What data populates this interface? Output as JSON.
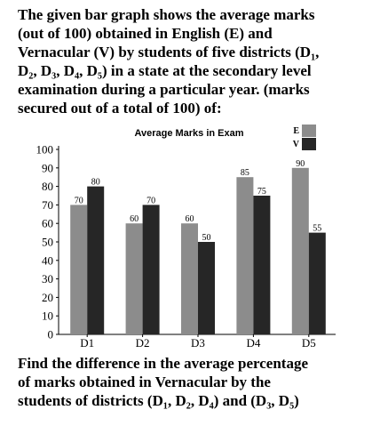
{
  "question": {
    "top": [
      "The given bar graph shows the average marks",
      "(out of 100) obtained in English (E) and",
      "Vernacular (V) by students of five districts (D₁,",
      "D₂, D₃, D₄, D₅) in a state at the secondary level",
      "examination during a particular year. (marks",
      "secured out of a total of 100) of:"
    ],
    "bottom": [
      "Find the difference in the average percentage",
      "of marks obtained in Vernacular by the",
      "students of districts (D₁, D₂, D₄) and (D₃, D₅)"
    ]
  },
  "chart_data": {
    "type": "bar",
    "title": "Average Marks in Exam",
    "categories": [
      "D1",
      "D2",
      "D3",
      "D4",
      "D5"
    ],
    "series": [
      {
        "name": "E",
        "values": [
          70,
          60,
          60,
          85,
          90
        ],
        "color": "#8c8c8c"
      },
      {
        "name": "V",
        "values": [
          80,
          70,
          50,
          75,
          55
        ],
        "color": "#262626"
      }
    ],
    "ylim": [
      0,
      100
    ],
    "yticks": [
      0,
      10,
      20,
      30,
      40,
      50,
      60,
      70,
      80,
      90,
      100
    ],
    "xlabel": "",
    "ylabel": "",
    "grid": false,
    "legend": "top-right"
  }
}
